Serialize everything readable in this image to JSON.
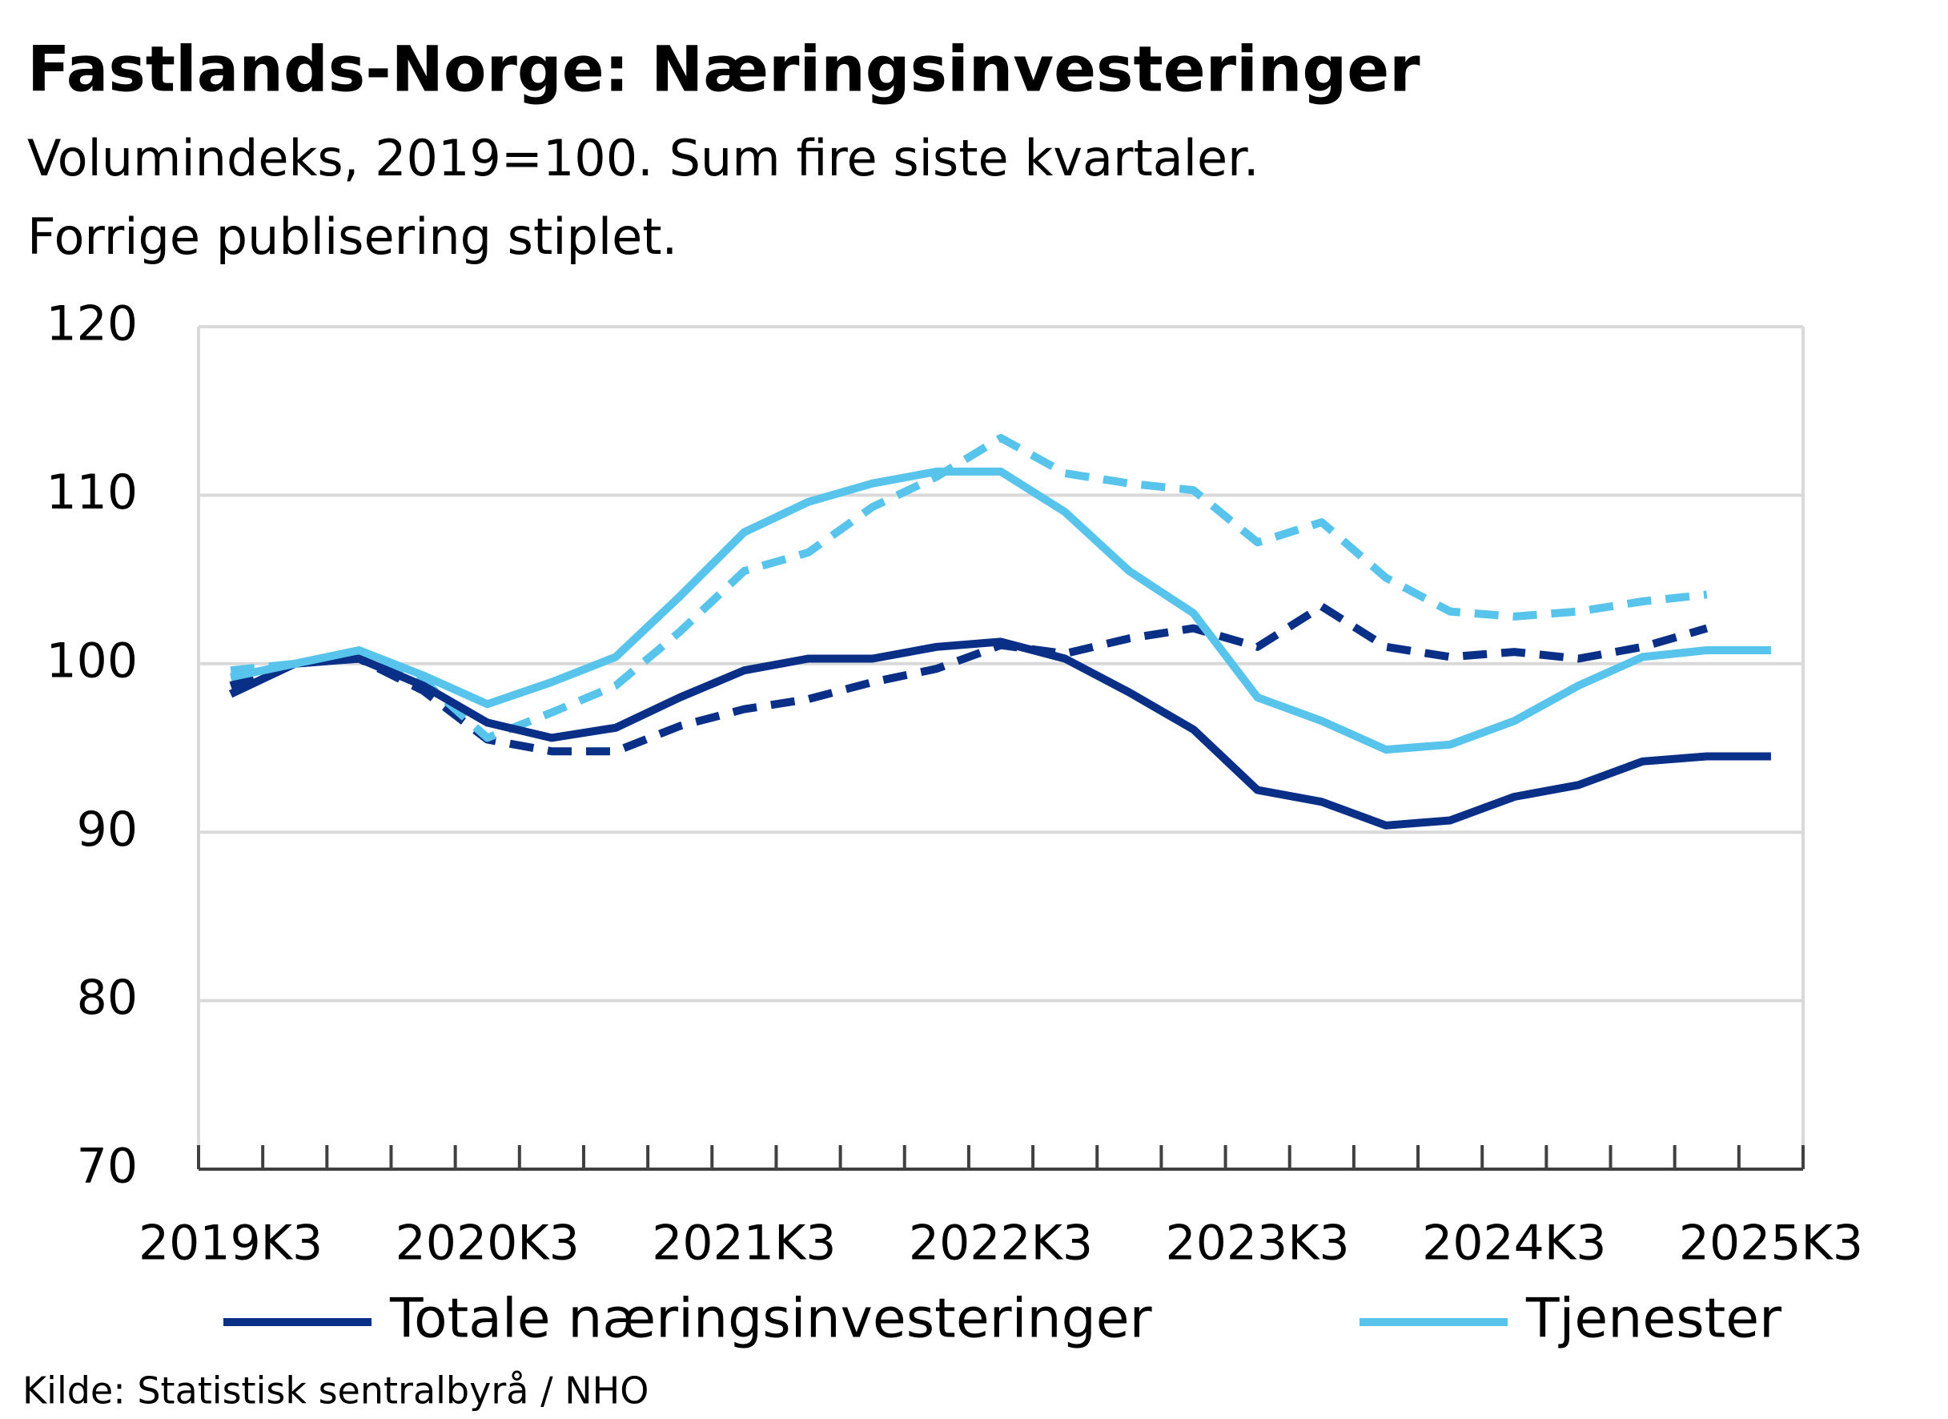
{
  "chart_data": {
    "type": "line",
    "title": "Fastlands-Norge:  Næringsinvesteringer",
    "subtitle": [
      "Volumindeks, 2019=100. Sum fire siste kvartaler.",
      "Forrige publisering stiplet."
    ],
    "source": "Kilde: Statistisk sentralbyrå / NHO",
    "categories": [
      "2019K3",
      null,
      null,
      null,
      "2020K3",
      null,
      null,
      null,
      "2021K3",
      null,
      null,
      null,
      "2022K3",
      null,
      null,
      null,
      "2023K3",
      null,
      null,
      null,
      "2024K3",
      null,
      null,
      null,
      "2025K3"
    ],
    "series": [
      {
        "name": "Totale næringsinvesteringer",
        "color": "#0a2f86",
        "dashed": false,
        "values": [
          98.2,
          100,
          100.3,
          98.7,
          96.5,
          95.6,
          96.2,
          98,
          99.6,
          100.3,
          100.3,
          101,
          101.3,
          100.3,
          98.3,
          96.1,
          92.5,
          91.8,
          90.4,
          90.7,
          92.1,
          92.8,
          94.2,
          94.5,
          94.5
        ]
      },
      {
        "name": "Tjenester",
        "color": "#58c4ec",
        "dashed": false,
        "values": [
          99.2,
          100,
          100.8,
          99.3,
          97.6,
          98.9,
          100.4,
          104,
          107.8,
          109.6,
          110.7,
          111.4,
          111.4,
          109,
          105.5,
          103,
          98,
          96.6,
          94.9,
          95.2,
          96.6,
          98.7,
          100.4,
          100.8,
          100.8
        ]
      },
      {
        "color": "#0a2f86",
        "dashed": true,
        "values": [
          98.7,
          100,
          100.3,
          98.4,
          95.5,
          94.8,
          94.8,
          96.3,
          97.3,
          97.9,
          98.9,
          99.7,
          101.1,
          100.6,
          101.5,
          102.1,
          101,
          103.4,
          101,
          100.4,
          100.7,
          100.3,
          101,
          102.1,
          null
        ]
      },
      {
        "color": "#58c4ec",
        "dashed": true,
        "values": [
          99.6,
          100,
          100.6,
          99,
          95.6,
          97.1,
          98.7,
          101.9,
          105.5,
          106.6,
          109.3,
          111.1,
          113.4,
          111.3,
          110.7,
          110.3,
          107.2,
          108.4,
          105.1,
          103.1,
          102.8,
          103.1,
          103.7,
          104.1,
          null
        ]
      }
    ],
    "ylim": [
      70,
      120
    ],
    "yticks": [
      70,
      80,
      90,
      100,
      110,
      120
    ],
    "grid": true
  }
}
